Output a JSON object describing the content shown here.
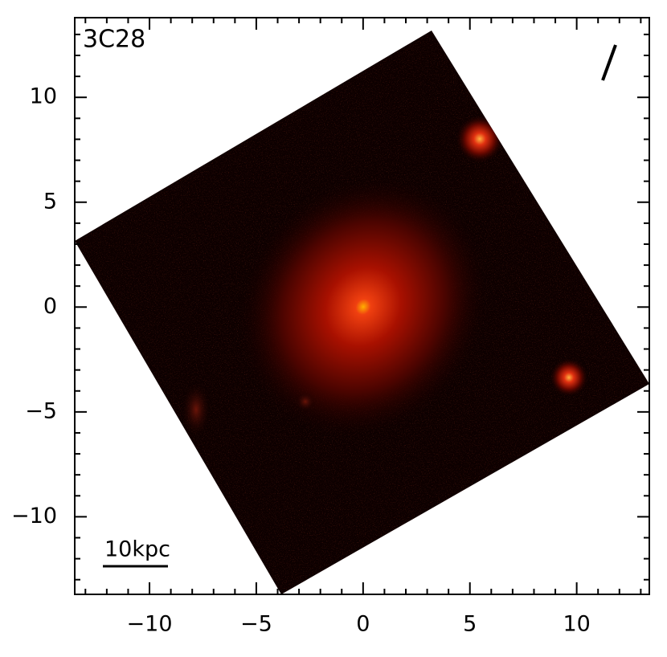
{
  "chart_data": {
    "type": "image",
    "title": "3C28",
    "scale_label": "10kpc",
    "xlim": [
      -13.5,
      13.4
    ],
    "ylim": [
      -13.7,
      13.8
    ],
    "xticks": [
      {
        "value": -10,
        "label": "−10"
      },
      {
        "value": -5,
        "label": "−5"
      },
      0,
      5,
      10
    ],
    "yticks": [
      {
        "value": -10,
        "label": "−10"
      },
      {
        "value": -5,
        "label": "−5"
      },
      0,
      5,
      10
    ],
    "xminorticks": [
      -13,
      -12,
      -11,
      -9,
      -8,
      -7,
      -6,
      -4,
      -3,
      -2,
      -1,
      1,
      2,
      3,
      4,
      6,
      7,
      8,
      9,
      11,
      12,
      13
    ],
    "yminorticks": [
      -13,
      -12,
      -11,
      -9,
      -8,
      -7,
      -6,
      -4,
      -3,
      -2,
      -1,
      1,
      2,
      3,
      4,
      6,
      7,
      8,
      9,
      11,
      12,
      13
    ]
  }
}
